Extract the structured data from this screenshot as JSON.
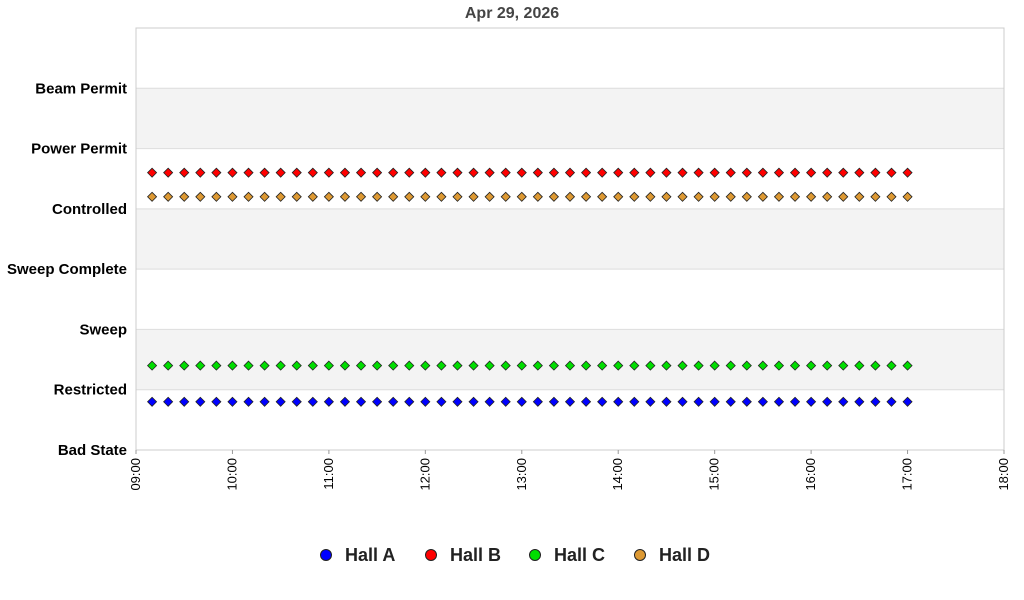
{
  "chart_data": {
    "type": "scatter",
    "title": "Apr 29, 2026",
    "xlabel": "",
    "ylabel": "",
    "x_ticks": [
      "09:00",
      "10:00",
      "11:00",
      "12:00",
      "13:00",
      "14:00",
      "15:00",
      "16:00",
      "17:00",
      "18:00"
    ],
    "xlim": [
      "09:00",
      "18:00"
    ],
    "y_categories": [
      "Bad State",
      "Restricted",
      "Sweep",
      "Sweep Complete",
      "Controlled",
      "Power Permit",
      "Beam Permit"
    ],
    "ylim": [
      0,
      7
    ],
    "grid": "alternating horizontal bands",
    "legend_position": "bottom",
    "x_start": "09:10",
    "x_end": "17:00",
    "x_step_minutes": 10,
    "series": [
      {
        "name": "Hall A",
        "color": "#0000ff",
        "level": 0.8
      },
      {
        "name": "Hall B",
        "color": "#ff0000",
        "level": 4.6
      },
      {
        "name": "Hall C",
        "color": "#00dd00",
        "level": 1.4
      },
      {
        "name": "Hall D",
        "color": "#dd9933",
        "level": 4.2
      }
    ]
  }
}
